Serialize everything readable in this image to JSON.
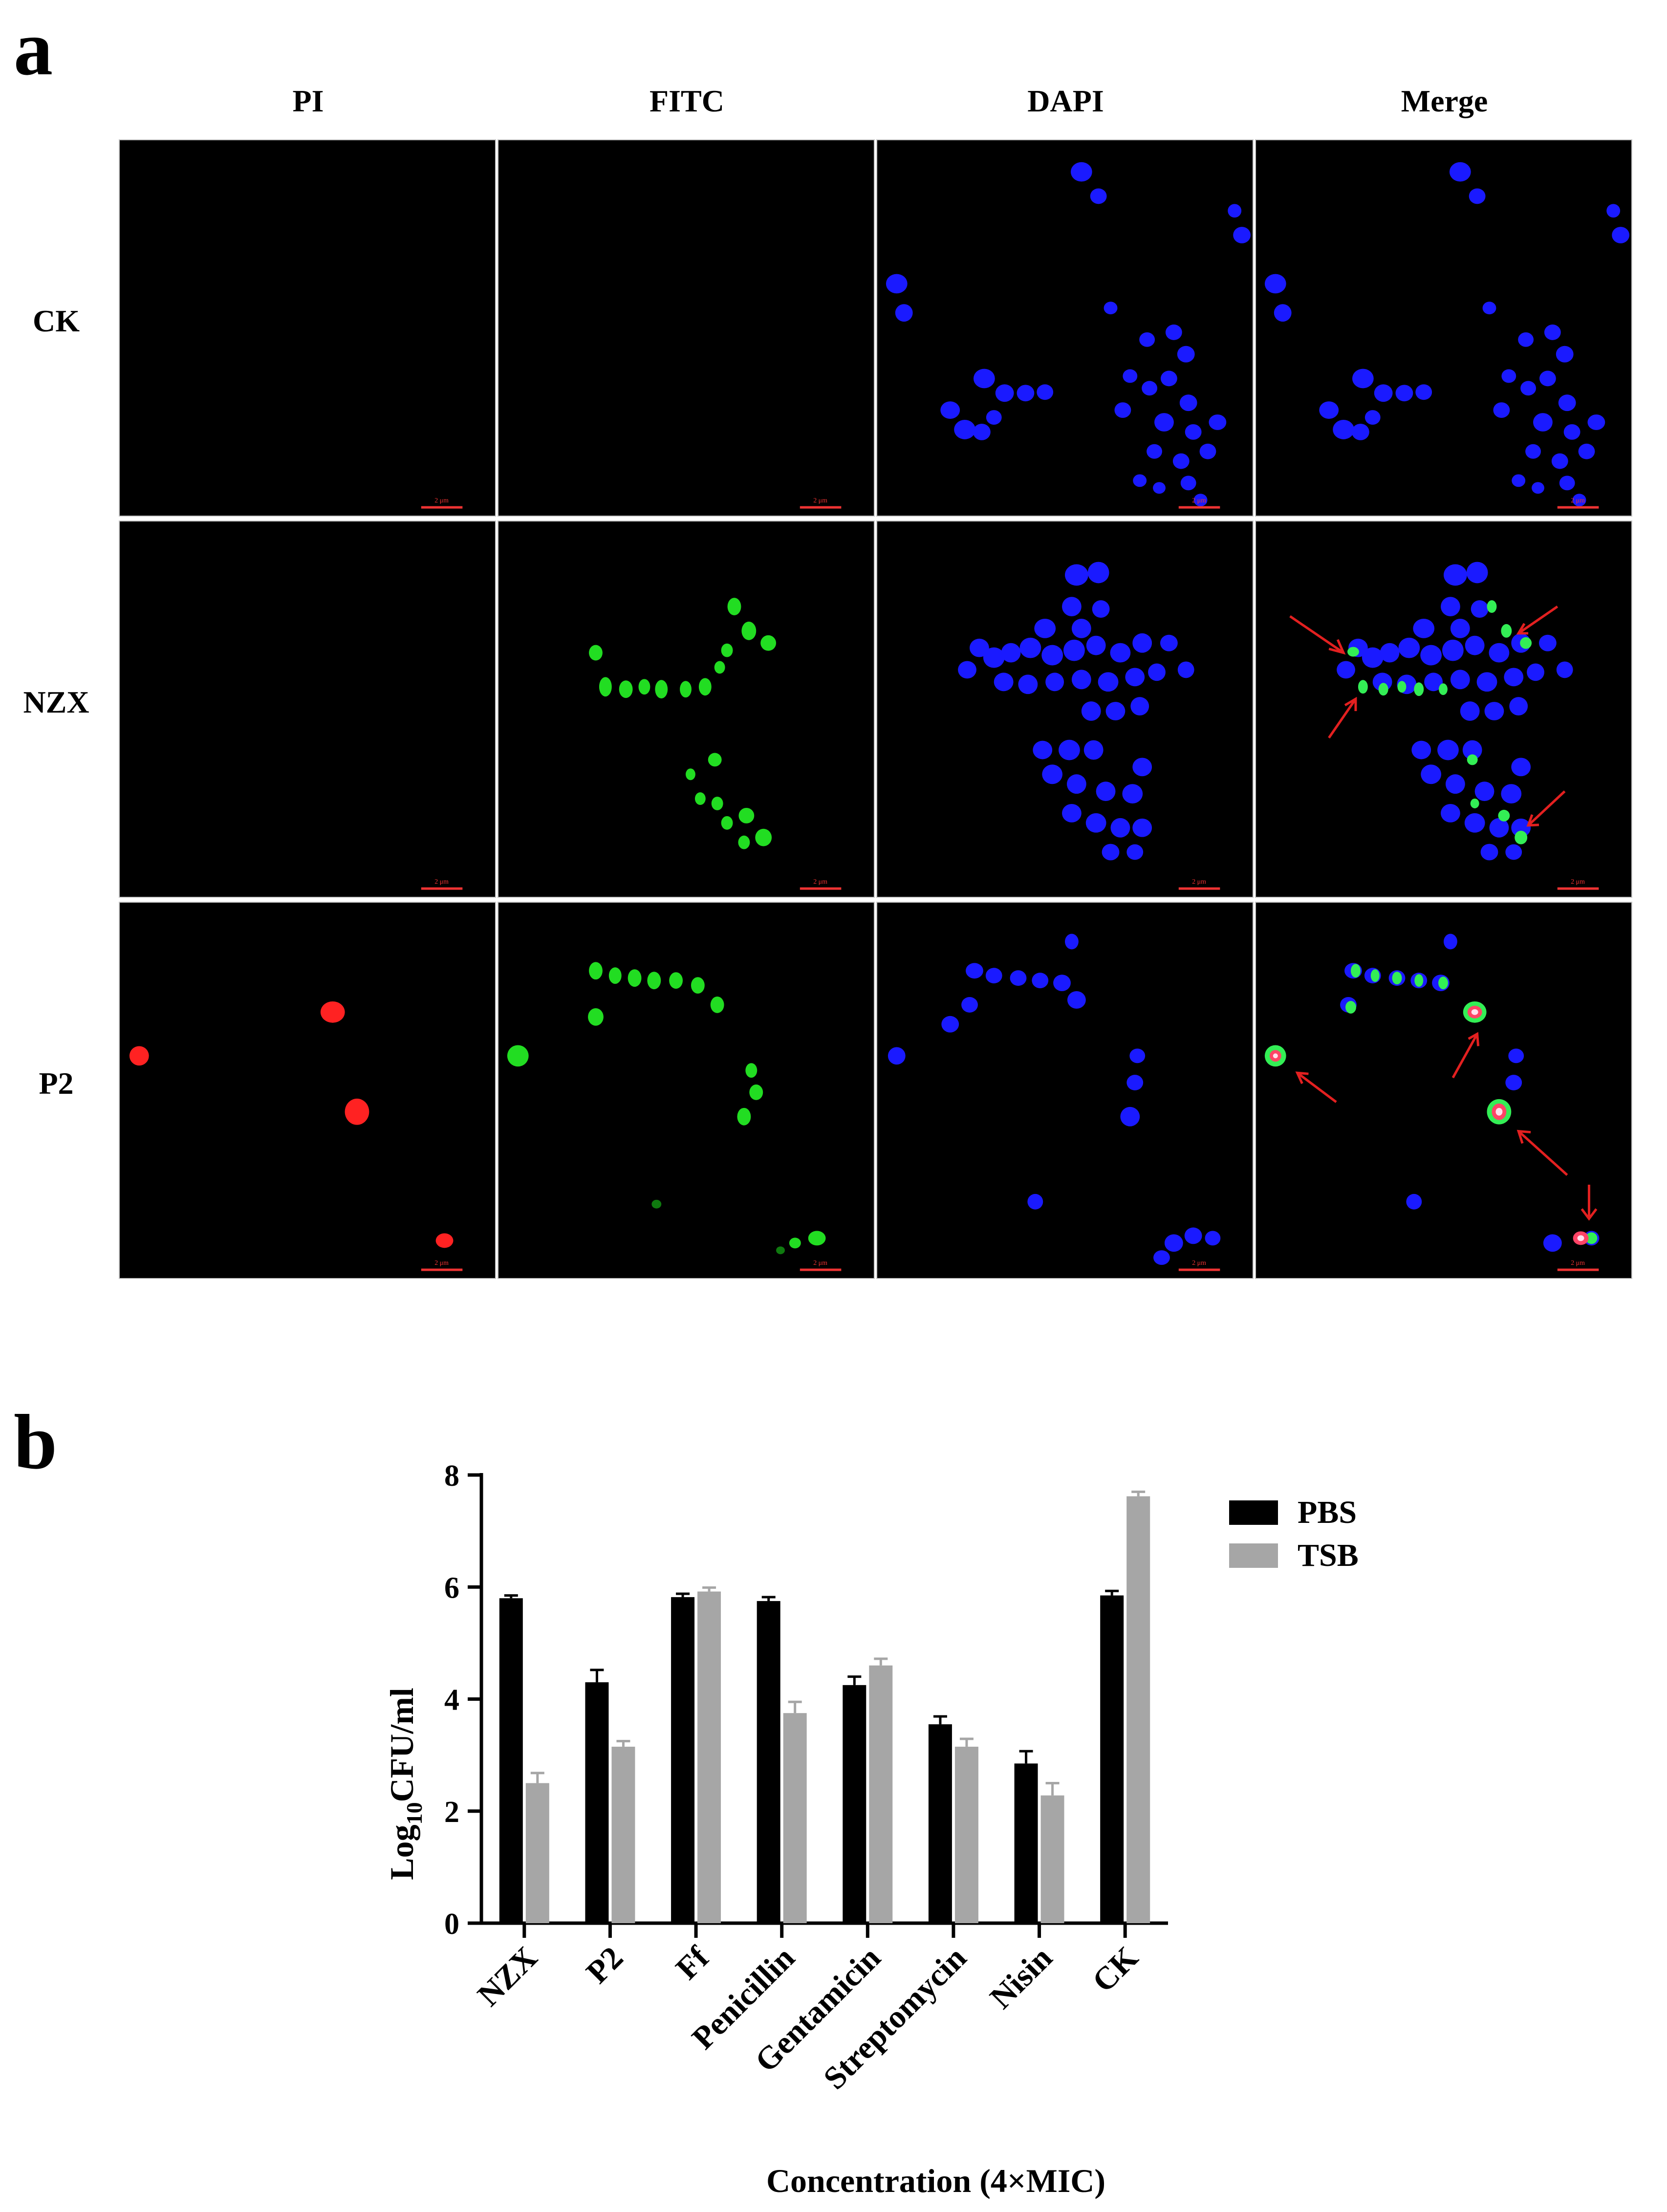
{
  "panel_a": {
    "letter": "a",
    "columns": [
      "PI",
      "FITC",
      "DAPI",
      "Merge"
    ],
    "rows": [
      "CK",
      "NZX",
      "P2"
    ],
    "scale_bar_text": "2 μm"
  },
  "panel_b": {
    "letter": "b"
  },
  "chart_data": {
    "type": "bar",
    "categories": [
      "NZX",
      "P2",
      "Ff",
      "Penicillin",
      "Gentamicin",
      "Streptomycin",
      "Nisin",
      "CK"
    ],
    "series": [
      {
        "name": "PBS",
        "color": "#000000",
        "values": [
          5.8,
          4.3,
          5.82,
          5.75,
          4.25,
          3.55,
          2.85,
          5.85
        ],
        "errors": [
          0.05,
          0.22,
          0.06,
          0.07,
          0.15,
          0.14,
          0.22,
          0.08
        ]
      },
      {
        "name": "TSB",
        "color": "#a6a6a6",
        "values": [
          2.5,
          3.15,
          5.92,
          3.75,
          4.6,
          3.15,
          2.28,
          7.62
        ],
        "errors": [
          0.18,
          0.1,
          0.07,
          0.2,
          0.12,
          0.14,
          0.22,
          0.08
        ]
      }
    ],
    "ylabel_main": "Log",
    "ylabel_sub": "10",
    "ylabel_rest": "CFU/ml",
    "xlabel": "Concentration (4×MIC)",
    "ylim": [
      0,
      8
    ],
    "yticks": [
      "0",
      "2",
      "4",
      "6",
      "8"
    ],
    "legend_position": "top-right",
    "grid": false
  }
}
